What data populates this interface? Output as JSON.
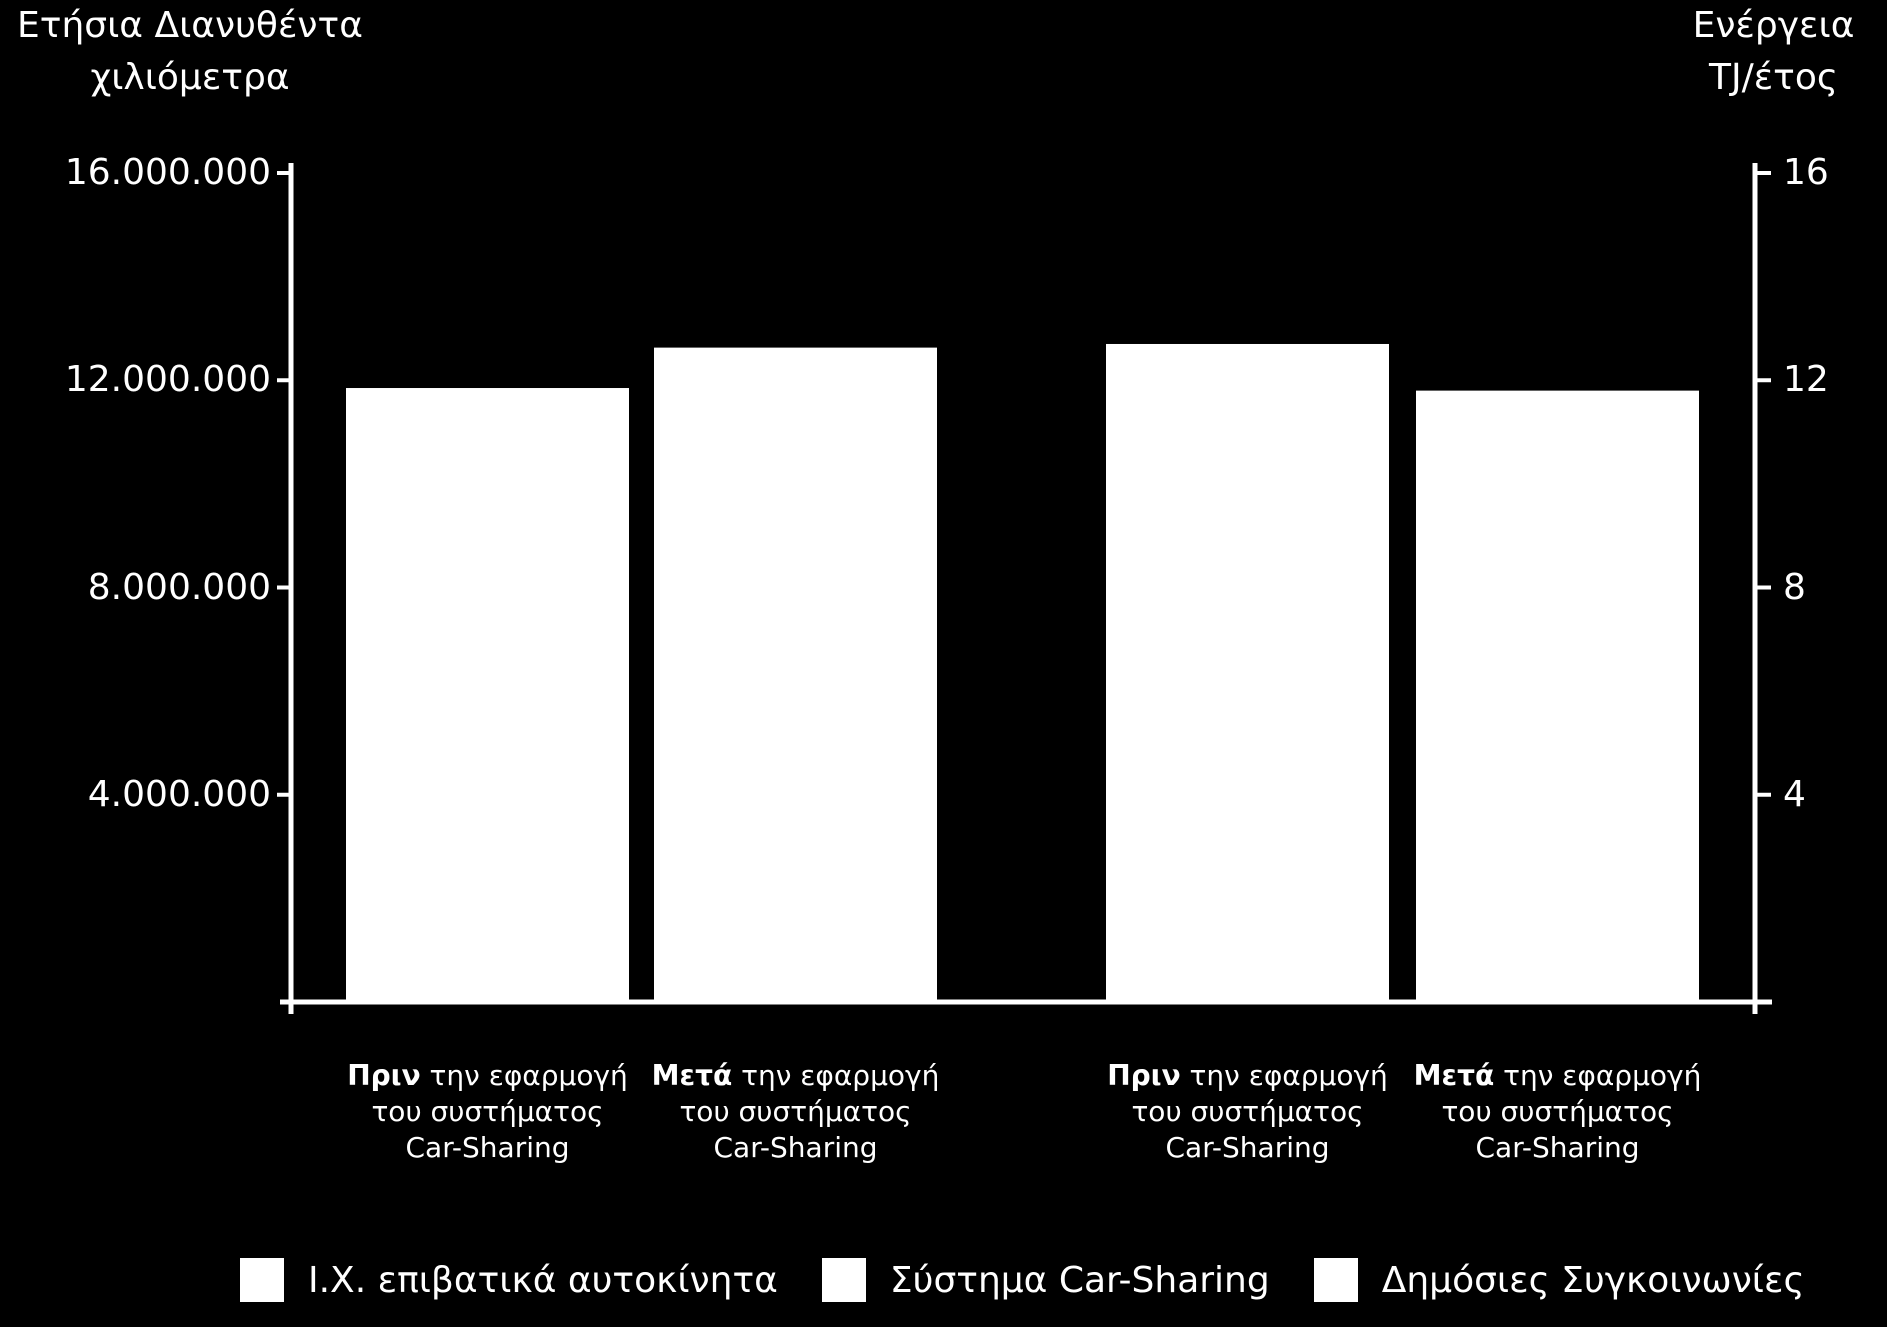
{
  "chart_data": {
    "type": "bar",
    "left_axis": {
      "title_lines": [
        "Ετήσια Διανυθέντα",
        "χιλιόμετρα"
      ],
      "ylim": [
        0,
        16000000
      ],
      "ticks": [
        4000000,
        8000000,
        12000000,
        16000000
      ],
      "tick_labels": [
        "4.000.000",
        "8.000.000",
        "12.000.000",
        "16.000.000"
      ]
    },
    "right_axis": {
      "title_lines": [
        "Ενέργεια",
        "TJ/έτος"
      ],
      "ylim": [
        0,
        16
      ],
      "ticks": [
        4,
        8,
        12,
        16
      ],
      "tick_labels": [
        "4",
        "8",
        "12",
        "16"
      ]
    },
    "categories": [
      {
        "bold": "Πριν",
        "rest": " την εφαρμογή",
        "line2": "του συστήματος",
        "line3": "Car-Sharing",
        "axis": "left"
      },
      {
        "bold": "Μετά",
        "rest": " την εφαρμογή",
        "line2": "του συστήματος",
        "line3": "Car-Sharing",
        "axis": "left"
      },
      {
        "bold": "Πριν",
        "rest": " την εφαρμογή",
        "line2": "του συστήματος",
        "line3": "Car-Sharing",
        "axis": "right"
      },
      {
        "bold": "Μετά",
        "rest": " την εφαρμογή",
        "line2": "του συστήματος",
        "line3": "Car-Sharing",
        "axis": "right"
      }
    ],
    "values": [
      11850000,
      12630000,
      12.7,
      11.8
    ],
    "legend": {
      "position": "bottom",
      "entries": [
        "Ι.Χ. επιβατικά αυτοκίνητα",
        "Σύστημα Car-Sharing",
        "Δημόσιες Συγκοινωνίες"
      ]
    },
    "grid": false,
    "colors": {
      "background": "#000000",
      "bars": "#ffffff",
      "axes": "#ffffff",
      "text": "#ffffff"
    }
  }
}
